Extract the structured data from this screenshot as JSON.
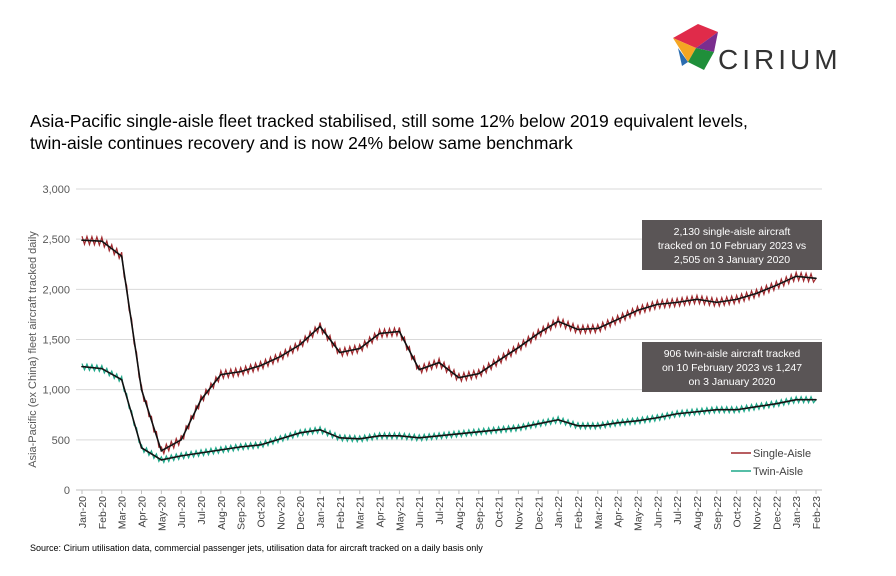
{
  "brand": {
    "name": "CIRIUM"
  },
  "title_lines": [
    "Asia-Pacific single-aisle fleet tracked stabilised, still some 12% below 2019 equivalent levels,",
    "twin-aisle continues recovery and is now 24% below same benchmark"
  ],
  "source": "Source: Cirium utilisation data, commercial passenger jets, utilisation data for aircraft tracked on a daily basis only",
  "colors": {
    "single_aisle": "#a0282d",
    "twin_aisle": "#1fa98a",
    "trend": "#111111",
    "annotation_bg": "#5a5556"
  },
  "chart_data": {
    "type": "line",
    "ylabel": "Asia-Pacific (ex China) fleet aircraft tracked daily",
    "xlabel": "",
    "ylim": [
      0,
      3000
    ],
    "yticks": [
      "0",
      "500",
      "1,000",
      "1,500",
      "2,000",
      "2,500",
      "3,000"
    ],
    "grid": true,
    "legend_position": "bottom-right",
    "categories": [
      "Jan-20",
      "Feb-20",
      "Mar-20",
      "Apr-20",
      "May-20",
      "Jun-20",
      "Jul-20",
      "Aug-20",
      "Sep-20",
      "Oct-20",
      "Nov-20",
      "Dec-20",
      "Jan-21",
      "Feb-21",
      "Mar-21",
      "Apr-21",
      "May-21",
      "Jun-21",
      "Jul-21",
      "Aug-21",
      "Sep-21",
      "Oct-21",
      "Nov-21",
      "Dec-21",
      "Jan-22",
      "Feb-22",
      "Mar-22",
      "Apr-22",
      "May-22",
      "Jun-22",
      "Jul-22",
      "Aug-22",
      "Sep-22",
      "Oct-22",
      "Nov-22",
      "Dec-22",
      "Jan-23",
      "Feb-23"
    ],
    "series": [
      {
        "name": "Single-Aisle",
        "values": [
          2490,
          2480,
          2330,
          1000,
          390,
          500,
          900,
          1150,
          1180,
          1240,
          1330,
          1450,
          1630,
          1370,
          1410,
          1560,
          1580,
          1200,
          1270,
          1120,
          1160,
          1290,
          1420,
          1560,
          1680,
          1600,
          1610,
          1700,
          1790,
          1850,
          1870,
          1900,
          1870,
          1900,
          1960,
          2040,
          2130,
          2110
        ]
      },
      {
        "name": "Twin-Aisle",
        "values": [
          1230,
          1210,
          1100,
          420,
          300,
          340,
          370,
          400,
          430,
          450,
          510,
          570,
          600,
          520,
          510,
          540,
          540,
          520,
          540,
          560,
          580,
          600,
          620,
          660,
          700,
          640,
          640,
          670,
          690,
          720,
          760,
          780,
          800,
          800,
          830,
          860,
          900,
          900
        ]
      }
    ],
    "annotations": [
      {
        "series": "Single-Aisle",
        "lines": [
          "2,130 single-aisle aircraft",
          "tracked on 10 February 2023 vs",
          "2,505 on 3 January 2020"
        ]
      },
      {
        "series": "Twin-Aisle",
        "lines": [
          "906 twin-aisle aircraft tracked",
          "on 10 February 2023 vs 1,247",
          "on 3 January 2020"
        ]
      }
    ]
  }
}
